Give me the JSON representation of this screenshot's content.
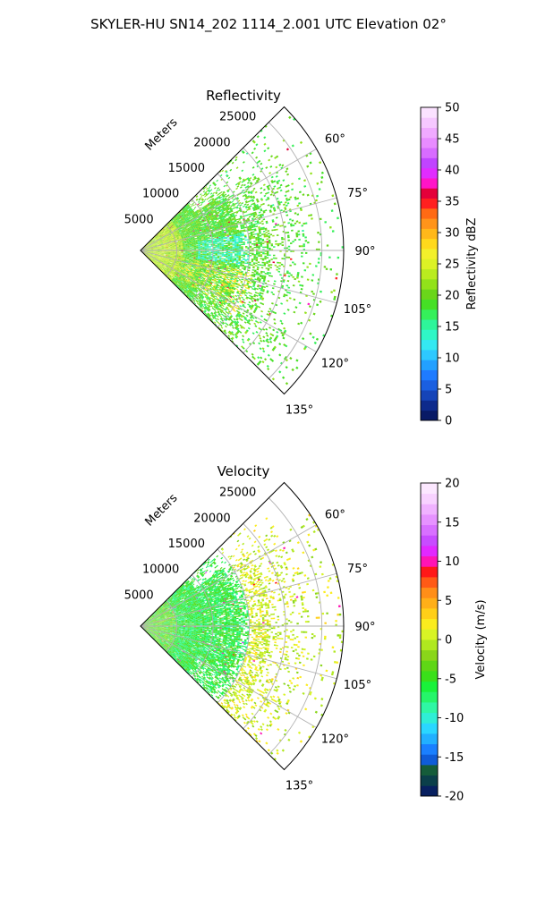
{
  "figure": {
    "title": "SKYLER-HU  SN14_202  1114_2.001 UTC Elevation 02°"
  },
  "chart_data": [
    {
      "type": "heatmap",
      "title": "Reflectivity",
      "projection": "polar-sector",
      "radial_label": "Meters",
      "radial_ticks": [
        5000,
        10000,
        15000,
        20000,
        25000
      ],
      "radial_tick_labels": [
        "5000",
        "10000",
        "15000",
        "20000",
        "25000"
      ],
      "angular_range_deg": [
        45,
        135
      ],
      "angular_ticks": [
        60,
        75,
        90,
        105,
        120,
        135
      ],
      "angular_tick_labels": [
        "60°",
        "75°",
        "90°",
        "105°",
        "120°",
        "135°"
      ],
      "grid": true,
      "colorbar": {
        "label": "Reflectivity dBZ",
        "range": [
          0,
          50
        ],
        "ticks": [
          0,
          5,
          10,
          15,
          20,
          25,
          30,
          35,
          40,
          45,
          50
        ],
        "tick_labels": [
          "0",
          "5",
          "10",
          "15",
          "20",
          "25",
          "30",
          "35",
          "40",
          "45",
          "50"
        ]
      }
    },
    {
      "type": "heatmap",
      "title": "Velocity",
      "projection": "polar-sector",
      "radial_label": "Meters",
      "radial_ticks": [
        5000,
        10000,
        15000,
        20000,
        25000
      ],
      "radial_tick_labels": [
        "5000",
        "10000",
        "15000",
        "20000",
        "25000"
      ],
      "angular_range_deg": [
        45,
        135
      ],
      "angular_ticks": [
        60,
        75,
        90,
        105,
        120,
        135
      ],
      "angular_tick_labels": [
        "60°",
        "75°",
        "90°",
        "105°",
        "120°",
        "135°"
      ],
      "grid": true,
      "colorbar": {
        "label": "Velocity (m/s)",
        "range": [
          -20,
          20
        ],
        "ticks": [
          -20,
          -15,
          -10,
          -5,
          0,
          5,
          10,
          15,
          20
        ],
        "tick_labels": [
          "-20",
          "-15",
          "-10",
          "-5",
          "0",
          "5",
          "10",
          "15",
          "20"
        ]
      }
    }
  ],
  "colors": {
    "reflectivity_scale": [
      "#081a66",
      "#0d2a8c",
      "#1544b8",
      "#1a5fe0",
      "#1e7bff",
      "#22a0ff",
      "#2dc8ff",
      "#34e8f2",
      "#2ff7c6",
      "#2ef59a",
      "#35f05a",
      "#45e025",
      "#6ad61a",
      "#92e21a",
      "#baec1f",
      "#dcf225",
      "#f3f02b",
      "#ffd91c",
      "#ffb81a",
      "#ff941a",
      "#ff6a14",
      "#ff2020",
      "#e4003a",
      "#ff14c8",
      "#e02cff",
      "#c044ff",
      "#d86cff",
      "#e88cff",
      "#f0aaff",
      "#f6c8ff",
      "#fbe2ff"
    ],
    "velocity_scale": [
      "#082060",
      "#0b3f4a",
      "#155c3a",
      "#0f5cd8",
      "#1a80ff",
      "#22b0ff",
      "#2ad7ff",
      "#2feed6",
      "#2ff7a4",
      "#25f56a",
      "#19f23a",
      "#3ae01a",
      "#5fd616",
      "#8ad61a",
      "#b0e81f",
      "#d8f425",
      "#fbec1e",
      "#ffcf18",
      "#ffaf18",
      "#ff8e18",
      "#ff5a16",
      "#ff1818",
      "#ff14b4",
      "#e228ff",
      "#c84cff",
      "#d870ff",
      "#e692ff",
      "#f0b2ff",
      "#f8d2ff",
      "#fce8ff"
    ]
  }
}
